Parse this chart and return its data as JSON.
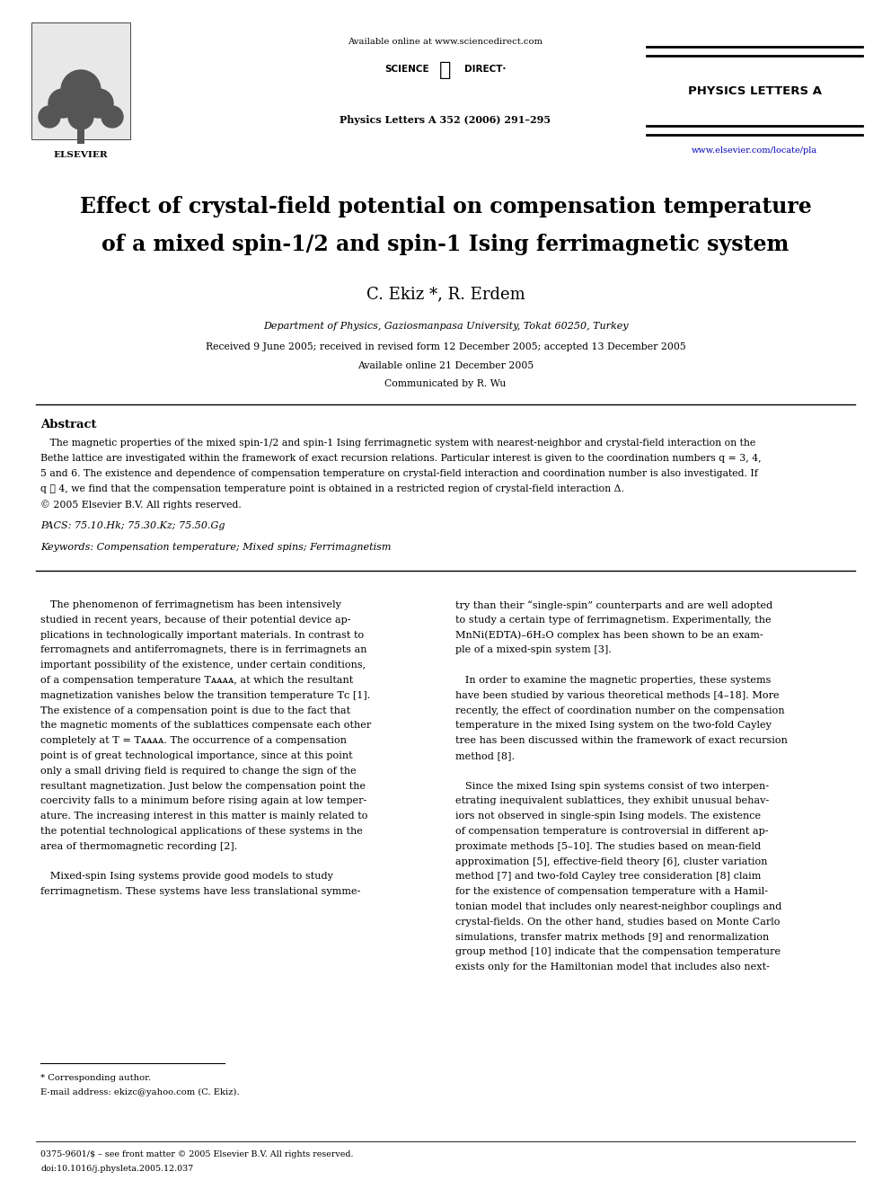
{
  "page_width": 9.92,
  "page_height": 13.23,
  "bg_color": "#ffffff",
  "available_online_header": "Available online at www.sciencedirect.com",
  "journal_name": "PHYSICS LETTERS A",
  "journal_ref": "Physics Letters A 352 (2006) 291–295",
  "elsevier_label": "ELSEVIER",
  "url": "www.elsevier.com/locate/pla",
  "title_line1": "Effect of crystal-field potential on compensation temperature",
  "title_line2": "of a mixed spin-1/2 and spin-1 Ising ferrimagnetic system",
  "authors": "C. Ekiz *, R. Erdem",
  "affiliation": "Department of Physics, Gaziosmanpasa University, Tokat 60250, Turkey",
  "received": "Received 9 June 2005; received in revised form 12 December 2005; accepted 13 December 2005",
  "available_online_date": "Available online 21 December 2005",
  "communicated": "Communicated by R. Wu",
  "abstract_title": "Abstract",
  "abstract_lines": [
    "   The magnetic properties of the mixed spin-1/2 and spin-1 Ising ferrimagnetic system with nearest-neighbor and crystal-field interaction on the",
    "Bethe lattice are investigated within the framework of exact recursion relations. Particular interest is given to the coordination numbers q = 3, 4,",
    "5 and 6. The existence and dependence of compensation temperature on crystal-field interaction and coordination number is also investigated. If",
    "q ⩾ 4, we find that the compensation temperature point is obtained in a restricted region of crystal-field interaction Δ.",
    "© 2005 Elsevier B.V. All rights reserved."
  ],
  "pacs": "PACS: 75.10.Hk; 75.30.Kz; 75.50.Gg",
  "keywords": "Keywords: Compensation temperature; Mixed spins; Ferrimagnetism",
  "col1_lines": [
    "   The phenomenon of ferrimagnetism has been intensively",
    "studied in recent years, because of their potential device ap-",
    "plications in technologically important materials. In contrast to",
    "ferromagnets and antiferromagnets, there is in ferrimagnets an",
    "important possibility of the existence, under certain conditions,",
    "of a compensation temperature Tᴀᴀᴀᴀ, at which the resultant",
    "magnetization vanishes below the transition temperature Tᴄ [1].",
    "The existence of a compensation point is due to the fact that",
    "the magnetic moments of the sublattices compensate each other",
    "completely at T = Tᴀᴀᴀᴀ. The occurrence of a compensation",
    "point is of great technological importance, since at this point",
    "only a small driving field is required to change the sign of the",
    "resultant magnetization. Just below the compensation point the",
    "coercivity falls to a minimum before rising again at low temper-",
    "ature. The increasing interest in this matter is mainly related to",
    "the potential technological applications of these systems in the",
    "area of thermomagnetic recording [2].",
    "",
    "   Mixed-spin Ising systems provide good models to study",
    "ferrimagnetism. These systems have less translational symme-"
  ],
  "col2_lines": [
    "try than their “single-spin” counterparts and are well adopted",
    "to study a certain type of ferrimagnetism. Experimentally, the",
    "MnNi(EDTA)–6H₂O complex has been shown to be an exam-",
    "ple of a mixed-spin system [3].",
    "",
    "   In order to examine the magnetic properties, these systems",
    "have been studied by various theoretical methods [4–18]. More",
    "recently, the effect of coordination number on the compensation",
    "temperature in the mixed Ising system on the two-fold Cayley",
    "tree has been discussed within the framework of exact recursion",
    "method [8].",
    "",
    "   Since the mixed Ising spin systems consist of two interpen-",
    "etrating inequivalent sublattices, they exhibit unusual behav-",
    "iors not observed in single-spin Ising models. The existence",
    "of compensation temperature is controversial in different ap-",
    "proximate methods [5–10]. The studies based on mean-field",
    "approximation [5], effective-field theory [6], cluster variation",
    "method [7] and two-fold Cayley tree consideration [8] claim",
    "for the existence of compensation temperature with a Hamil-",
    "tonian model that includes only nearest-neighbor couplings and",
    "crystal-fields. On the other hand, studies based on Monte Carlo",
    "simulations, transfer matrix methods [9] and renormalization",
    "group method [10] indicate that the compensation temperature",
    "exists only for the Hamiltonian model that includes also next-"
  ],
  "footnote_star": "* Corresponding author.",
  "footnote_email": "E-mail address: ekizc@yahoo.com (C. Ekiz).",
  "footer_issn": "0375-9601/$ – see front matter © 2005 Elsevier B.V. All rights reserved.",
  "footer_doi": "doi:10.1016/j.physleta.2005.12.037"
}
